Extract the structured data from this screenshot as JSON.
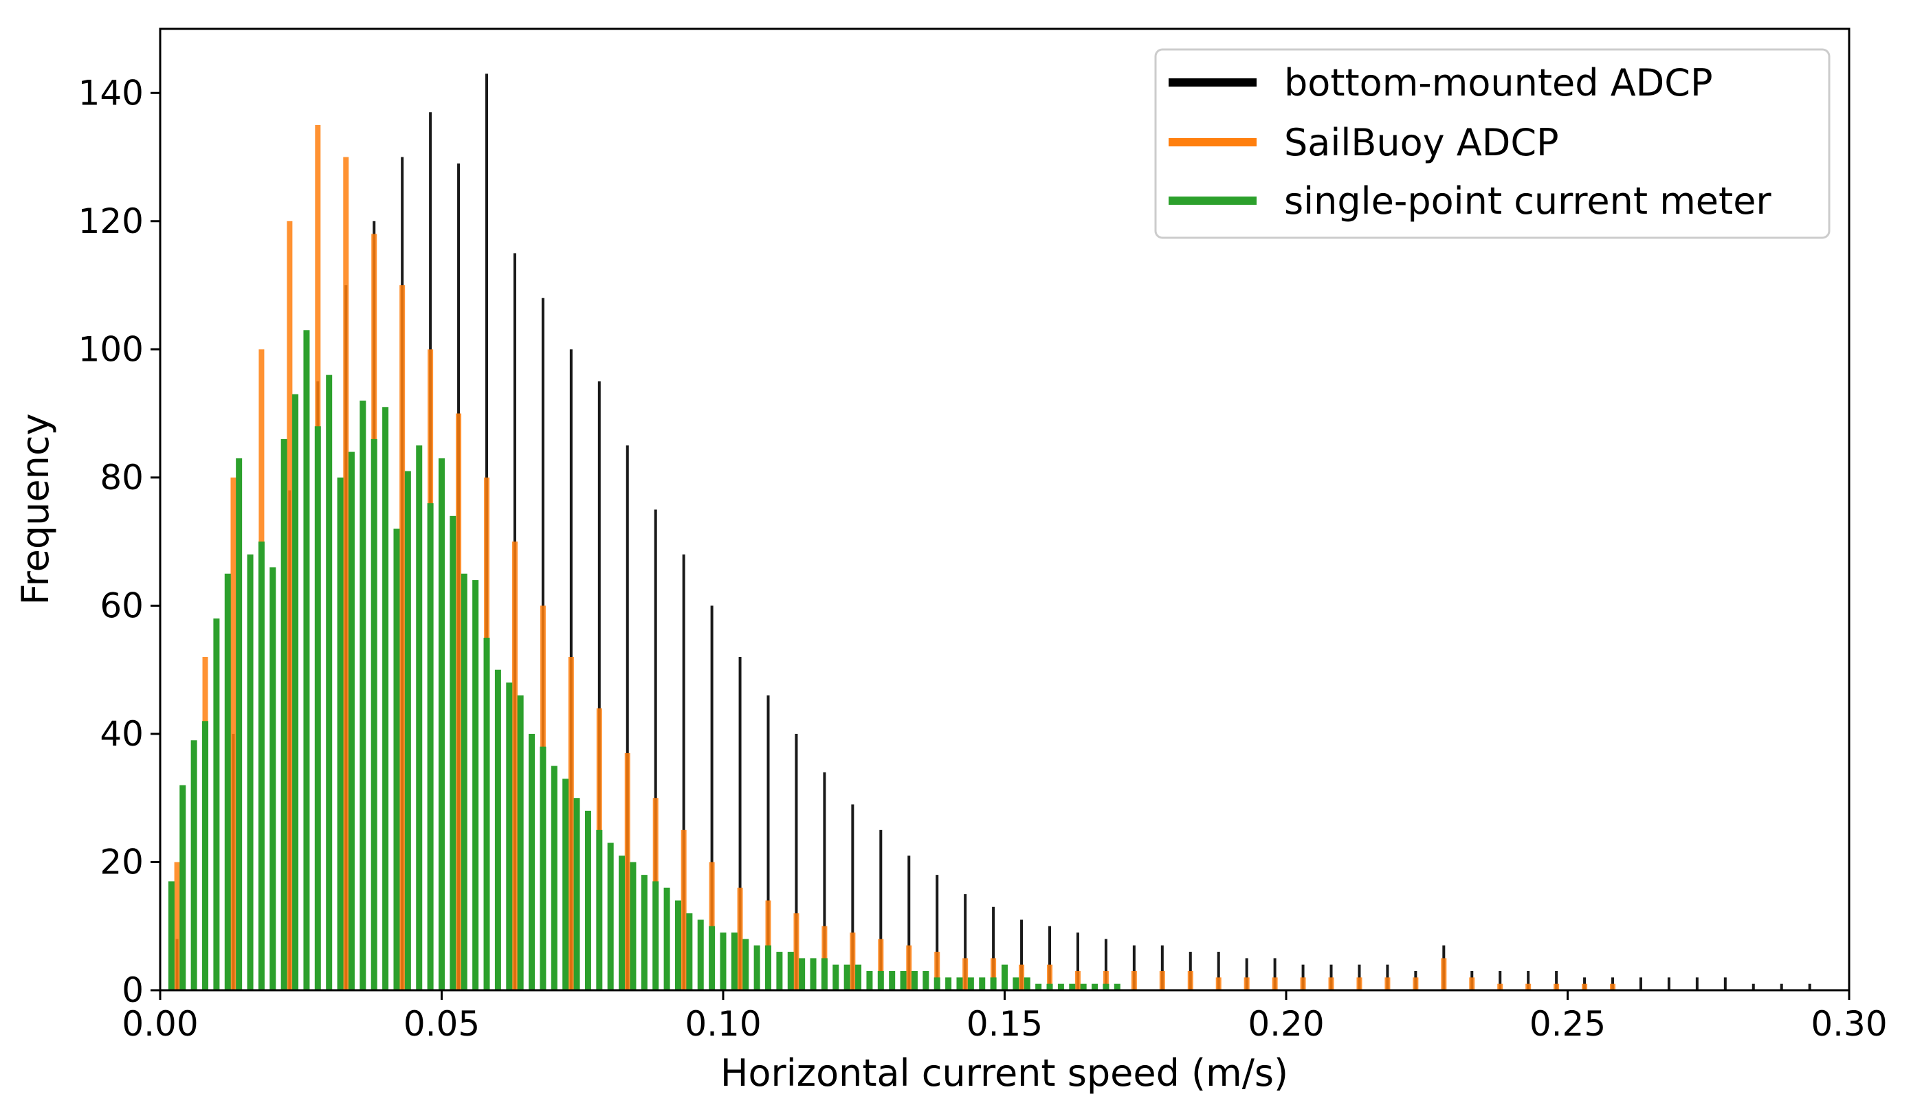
{
  "chart_data": {
    "type": "bar",
    "title": "",
    "xlabel": "Horizontal current speed (m/s)",
    "ylabel": "Frequency",
    "xlim": [
      0.0,
      0.3
    ],
    "ylim": [
      0,
      150
    ],
    "x_ticks": [
      "0.00",
      "0.05",
      "0.10",
      "0.15",
      "0.20",
      "0.25",
      "0.30"
    ],
    "y_ticks": [
      "0",
      "20",
      "40",
      "60",
      "80",
      "100",
      "120",
      "140"
    ],
    "grid": false,
    "legend_position": "top-right",
    "series": [
      {
        "name": "bottom-mounted ADCP",
        "color": "#000000",
        "x": [
          0.003,
          0.008,
          0.013,
          0.018,
          0.023,
          0.028,
          0.033,
          0.038,
          0.043,
          0.048,
          0.053,
          0.058,
          0.063,
          0.068,
          0.073,
          0.078,
          0.083,
          0.088,
          0.093,
          0.098,
          0.103,
          0.108,
          0.113,
          0.118,
          0.123,
          0.128,
          0.133,
          0.138,
          0.143,
          0.148,
          0.153,
          0.158,
          0.163,
          0.168,
          0.173,
          0.178,
          0.183,
          0.188,
          0.193,
          0.198,
          0.203,
          0.208,
          0.213,
          0.218,
          0.223,
          0.228,
          0.233,
          0.238,
          0.243,
          0.248,
          0.253,
          0.258,
          0.263,
          0.268,
          0.273,
          0.278,
          0.283,
          0.288,
          0.293
        ],
        "values": [
          8,
          20,
          40,
          60,
          78,
          95,
          110,
          120,
          130,
          137,
          129,
          143,
          115,
          108,
          100,
          95,
          85,
          75,
          68,
          60,
          52,
          46,
          40,
          34,
          29,
          25,
          21,
          18,
          15,
          13,
          11,
          10,
          9,
          8,
          7,
          7,
          6,
          6,
          5,
          5,
          4,
          4,
          4,
          4,
          3,
          7,
          3,
          3,
          3,
          3,
          2,
          2,
          2,
          2,
          2,
          2,
          1,
          1,
          1
        ]
      },
      {
        "name": "SailBuoy ADCP",
        "color": "#ff7f0e",
        "x": [
          0.003,
          0.008,
          0.013,
          0.018,
          0.023,
          0.028,
          0.033,
          0.038,
          0.043,
          0.048,
          0.053,
          0.058,
          0.063,
          0.068,
          0.073,
          0.078,
          0.083,
          0.088,
          0.093,
          0.098,
          0.103,
          0.108,
          0.113,
          0.118,
          0.123,
          0.128,
          0.133,
          0.138,
          0.143,
          0.148,
          0.153,
          0.158,
          0.163,
          0.168,
          0.173,
          0.178,
          0.183,
          0.188,
          0.193,
          0.198,
          0.203,
          0.208,
          0.213,
          0.218,
          0.223,
          0.228,
          0.233,
          0.238,
          0.243,
          0.248,
          0.253,
          0.258
        ],
        "values": [
          20,
          52,
          80,
          100,
          120,
          135,
          130,
          118,
          110,
          100,
          90,
          80,
          70,
          60,
          52,
          44,
          37,
          30,
          25,
          20,
          16,
          14,
          12,
          10,
          9,
          8,
          7,
          6,
          5,
          5,
          4,
          4,
          3,
          3,
          3,
          3,
          3,
          2,
          2,
          2,
          2,
          2,
          2,
          2,
          2,
          5,
          2,
          1,
          1,
          1,
          1,
          1
        ]
      },
      {
        "name": "single-point current meter",
        "color": "#2ca02c",
        "x": [
          0.002,
          0.004,
          0.006,
          0.008,
          0.01,
          0.012,
          0.014,
          0.016,
          0.018,
          0.02,
          0.022,
          0.024,
          0.026,
          0.028,
          0.03,
          0.032,
          0.034,
          0.036,
          0.038,
          0.04,
          0.042,
          0.044,
          0.046,
          0.048,
          0.05,
          0.052,
          0.054,
          0.056,
          0.058,
          0.06,
          0.062,
          0.064,
          0.066,
          0.068,
          0.07,
          0.072,
          0.074,
          0.076,
          0.078,
          0.08,
          0.082,
          0.084,
          0.086,
          0.088,
          0.09,
          0.092,
          0.094,
          0.096,
          0.098,
          0.1,
          0.102,
          0.104,
          0.106,
          0.108,
          0.11,
          0.112,
          0.114,
          0.116,
          0.118,
          0.12,
          0.122,
          0.124,
          0.126,
          0.128,
          0.13,
          0.132,
          0.134,
          0.136,
          0.138,
          0.14,
          0.142,
          0.144,
          0.146,
          0.148,
          0.15,
          0.152,
          0.154,
          0.156,
          0.158,
          0.16,
          0.162,
          0.164,
          0.166,
          0.168,
          0.17
        ],
        "values": [
          17,
          32,
          39,
          42,
          58,
          65,
          83,
          68,
          70,
          66,
          86,
          93,
          103,
          88,
          96,
          80,
          84,
          92,
          86,
          91,
          72,
          81,
          85,
          76,
          83,
          74,
          65,
          64,
          55,
          50,
          48,
          46,
          40,
          38,
          35,
          33,
          30,
          28,
          25,
          23,
          21,
          20,
          18,
          17,
          16,
          14,
          12,
          11,
          10,
          9,
          9,
          8,
          7,
          7,
          6,
          6,
          5,
          5,
          5,
          4,
          4,
          4,
          3,
          3,
          3,
          3,
          3,
          3,
          2,
          2,
          2,
          2,
          2,
          2,
          4,
          2,
          2,
          1,
          1,
          1,
          1,
          1,
          1,
          1,
          1
        ]
      }
    ]
  }
}
